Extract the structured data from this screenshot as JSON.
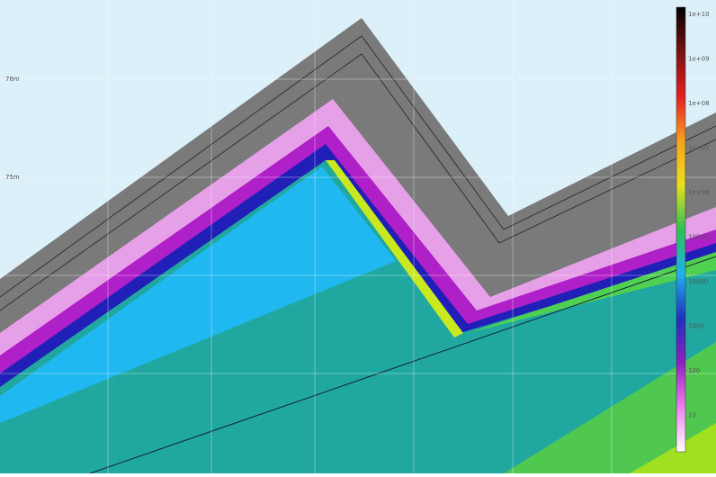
{
  "colorbar": {
    "labels": [
      "1e+10",
      "1e+09",
      "1e+08",
      "1e+07",
      "1e+06",
      "100000",
      "10000",
      "1000",
      "100",
      "10"
    ]
  },
  "axis": {
    "left_labels": [
      "76m",
      "75m"
    ]
  }
}
